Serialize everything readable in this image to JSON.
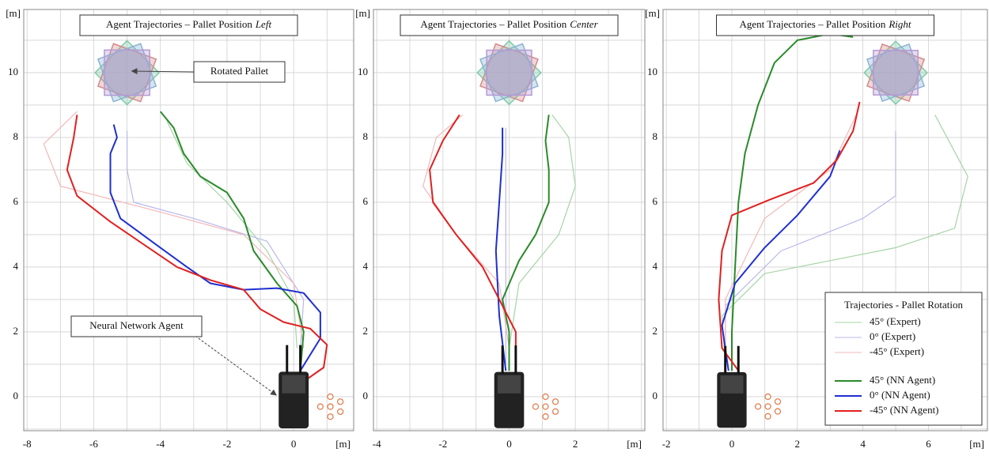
{
  "chart_data": [
    {
      "type": "line",
      "title": "Agent Trajectories – Pallet Position",
      "title_emphasis": "Left",
      "x_label": "[m]",
      "y_label": "[m]",
      "xlim": [
        -8.1,
        1.8
      ],
      "ylim": [
        -1.05,
        11.95
      ],
      "xticks": [
        -8,
        -6,
        -4,
        -2,
        0
      ],
      "yticks": [
        0,
        2,
        4,
        6,
        8,
        10
      ],
      "grid": true,
      "pallet": [
        -5,
        10
      ],
      "agent": [
        0,
        0
      ],
      "annotations": [
        "Rotated Pallet",
        "Neural Network Agent"
      ],
      "series": [
        {
          "color": "#a6d4a6",
          "line_width": 1,
          "x": [
            0.1,
            0,
            -0.8,
            -2,
            -3.2,
            -3.8
          ],
          "y": [
            1.5,
            3,
            4.5,
            6,
            7.2,
            8.5
          ]
        },
        {
          "color": "#b8b8ec",
          "line_width": 1,
          "x": [
            0.2,
            0.3,
            -0.8,
            -3,
            -4.8,
            -5,
            -5
          ],
          "y": [
            1.5,
            3,
            4.8,
            5.5,
            6,
            7,
            8.2
          ]
        },
        {
          "color": "#f2b8b8",
          "line_width": 1,
          "x": [
            0.3,
            0,
            -1.5,
            -4,
            -7,
            -7.5,
            -6.5
          ],
          "y": [
            1.5,
            3.5,
            5,
            5.7,
            6.5,
            7.8,
            8.8
          ]
        },
        {
          "color": "#2a8a2a",
          "line_width": 2,
          "x": [
            0.2,
            0.3,
            0.1,
            -0.5,
            -1.2,
            -1.5,
            -2,
            -2.8,
            -3.3,
            -3.6,
            -4
          ],
          "y": [
            0.8,
            2,
            2.8,
            3.5,
            4.5,
            5.5,
            6.3,
            6.8,
            7.5,
            8.3,
            8.8
          ]
        },
        {
          "color": "#1f2fd0",
          "line_width": 2,
          "x": [
            0.2,
            0.8,
            0.8,
            0.3,
            -0.5,
            -1.5,
            -2.5,
            -3.2,
            -4,
            -5.2,
            -5.5,
            -5.5,
            -5.3,
            -5.4
          ],
          "y": [
            0.8,
            1.8,
            2.6,
            3.2,
            3.35,
            3.3,
            3.5,
            4,
            4.6,
            5.5,
            6.3,
            7.5,
            8,
            8.4
          ]
        },
        {
          "color": "#e02020",
          "line_width": 2,
          "x": [
            0.2,
            0.9,
            1,
            0.5,
            -0.3,
            -1,
            -1.5,
            -2.5,
            -3.5,
            -4.5,
            -5.5,
            -6.5,
            -6.8,
            -6.6,
            -6.5
          ],
          "y": [
            0.4,
            0.9,
            1.6,
            2.1,
            2.3,
            2.7,
            3.3,
            3.6,
            4,
            4.7,
            5.4,
            6.2,
            7,
            8,
            8.7
          ]
        }
      ]
    },
    {
      "type": "line",
      "title": "Agent Trajectories – Pallet Position",
      "title_emphasis": "Center",
      "x_label": "[m]",
      "y_label": "[m]",
      "xlim": [
        -4.1,
        4.1
      ],
      "ylim": [
        -1.05,
        11.95
      ],
      "xticks": [
        -4,
        -2,
        0,
        2
      ],
      "yticks": [
        0,
        2,
        4,
        6,
        8,
        10
      ],
      "grid": true,
      "pallet": [
        0,
        10
      ],
      "agent": [
        0,
        0
      ],
      "series": [
        {
          "color": "#a6d4a6",
          "line_width": 1,
          "x": [
            0,
            0.3,
            1.5,
            2,
            1.8,
            1.3
          ],
          "y": [
            1.5,
            3.5,
            5,
            6.5,
            8,
            8.7
          ]
        },
        {
          "color": "#b8b8ec",
          "line_width": 1,
          "x": [
            -0.1,
            -0.1
          ],
          "y": [
            1,
            8.3
          ]
        },
        {
          "color": "#f2b8b8",
          "line_width": 1,
          "x": [
            0,
            -0.3,
            -1.6,
            -2.6,
            -2.2,
            -1.4
          ],
          "y": [
            1.5,
            3.5,
            5,
            6.5,
            8,
            8.7
          ]
        },
        {
          "color": "#2a8a2a",
          "line_width": 2,
          "x": [
            0,
            0,
            -0.2,
            0.3,
            0.8,
            1.2,
            1.2,
            1.1,
            1.2
          ],
          "y": [
            0.8,
            2,
            3,
            4.2,
            5,
            6,
            7,
            7.9,
            8.7
          ]
        },
        {
          "color": "#1f2fd0",
          "line_width": 2,
          "x": [
            -0.1,
            -0.3,
            -0.4,
            -0.3,
            -0.2,
            -0.2
          ],
          "y": [
            0.8,
            2.5,
            4.5,
            6,
            7.5,
            8.3
          ]
        },
        {
          "color": "#e02020",
          "line_width": 2,
          "x": [
            0.2,
            0.2,
            -0.3,
            -0.8,
            -1.6,
            -2.3,
            -2.4,
            -2,
            -1.5
          ],
          "y": [
            0.8,
            2,
            3,
            4,
            5,
            6,
            7,
            7.9,
            8.7
          ]
        }
      ]
    },
    {
      "type": "line",
      "title": "Agent Trajectories – Pallet Position",
      "title_emphasis": "Right",
      "x_label": "[m]",
      "y_label": "[m]",
      "xlim": [
        -2.1,
        7.8
      ],
      "ylim": [
        -1.05,
        11.95
      ],
      "xticks": [
        -2,
        0,
        2,
        4,
        6
      ],
      "yticks": [
        0,
        2,
        4,
        6,
        8,
        10
      ],
      "grid": true,
      "pallet": [
        5,
        10
      ],
      "agent": [
        0,
        0
      ],
      "legend": "lower right",
      "legend_title": "Trajectories - Pallet Rotation",
      "series": [
        {
          "name": "45° (Expert)",
          "color": "#a6d4a6",
          "line_width": 1,
          "x": [
            -0.2,
            -0.3,
            1,
            3,
            5,
            6.8,
            7.2,
            6.2
          ],
          "y": [
            1,
            2.5,
            3.8,
            4.2,
            4.6,
            5.2,
            6.8,
            8.7
          ]
        },
        {
          "name": "0° (Expert)",
          "color": "#b8b8ec",
          "line_width": 1,
          "x": [
            -0.2,
            -0.2,
            1.5,
            4,
            5,
            5
          ],
          "y": [
            1,
            2.8,
            4.5,
            5.5,
            6.2,
            8.2
          ]
        },
        {
          "name": "-45° (Expert)",
          "color": "#f2b8b8",
          "line_width": 1,
          "x": [
            -0.2,
            -0.2,
            1,
            3,
            3.8
          ],
          "y": [
            1,
            3,
            5.5,
            7,
            8.7
          ]
        },
        {
          "name": "45° (NN Agent)",
          "color": "#2a8a2a",
          "line_width": 2,
          "x": [
            0,
            0,
            0.1,
            0.2,
            0.4,
            0.8,
            1.3,
            2,
            3,
            3.7
          ],
          "y": [
            0.8,
            2,
            4,
            6,
            7.5,
            9,
            10.3,
            11,
            11.2,
            11.1
          ]
        },
        {
          "name": "0° (NN Agent)",
          "color": "#1f2fd0",
          "line_width": 2,
          "x": [
            -0.1,
            -0.3,
            0.1,
            1,
            2,
            3,
            3.3
          ],
          "y": [
            0.8,
            2.2,
            3.5,
            4.6,
            5.6,
            6.8,
            7.6
          ]
        },
        {
          "name": "-45° (NN Agent)",
          "color": "#e02020",
          "line_width": 2,
          "x": [
            0.2,
            -0.3,
            -0.4,
            -0.3,
            0,
            1.2,
            2.5,
            3.2,
            3.7,
            3.9
          ],
          "y": [
            0.8,
            1.5,
            3,
            4.5,
            5.6,
            6.1,
            6.6,
            7.3,
            8.2,
            9.1
          ]
        }
      ]
    }
  ]
}
